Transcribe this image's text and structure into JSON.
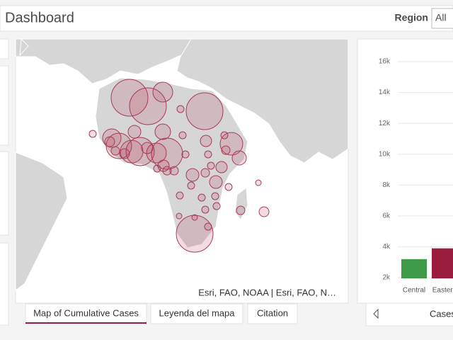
{
  "header": {
    "title": "Dashboard",
    "filter_label": "Region",
    "filter_value": "All"
  },
  "map": {
    "attribution": "Esri, FAO, NOAA | Esri, FAO, N…"
  },
  "tabs": [
    "Map of Cumulative Cases",
    "Leyenda del mapa",
    "Citation"
  ],
  "chart_data": {
    "type": "bar",
    "categories": [
      "Central",
      "Eastern"
    ],
    "values": [
      3200,
      3900
    ],
    "colors": [
      "#3d9a47",
      "#9b1d3d"
    ],
    "ylim": [
      2000,
      16000
    ],
    "yticks": [
      {
        "value": 2000,
        "label": "2k"
      },
      {
        "value": 4000,
        "label": "4k"
      },
      {
        "value": 6000,
        "label": "6k"
      },
      {
        "value": 8000,
        "label": "8k"
      },
      {
        "value": 10000,
        "label": "10k"
      },
      {
        "value": 12000,
        "label": "12k"
      },
      {
        "value": 14000,
        "label": "14k"
      },
      {
        "value": 16000,
        "label": "16k"
      }
    ],
    "grid": true,
    "footer_label": "Cases"
  }
}
